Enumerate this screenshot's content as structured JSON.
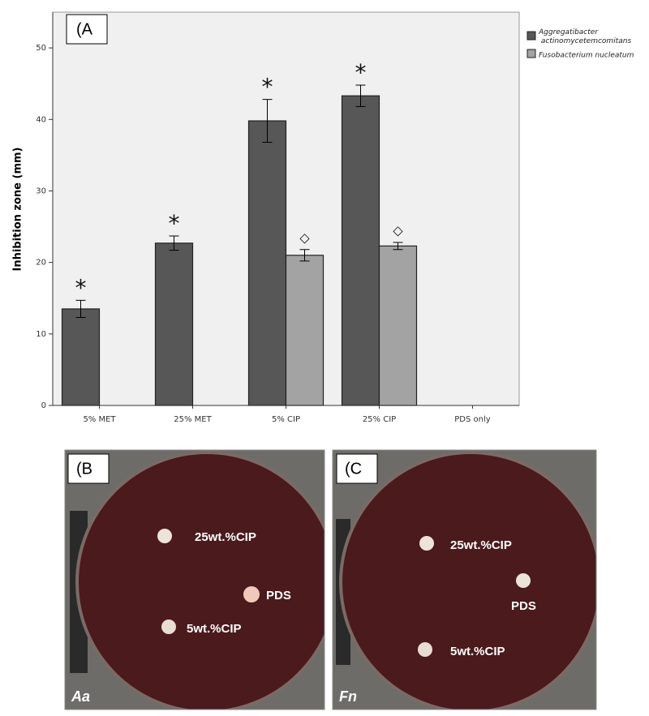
{
  "chart_data": {
    "type": "bar",
    "panel_label": "(A",
    "y_label": "Inhibition zone (mm)",
    "categories": [
      "5% MET",
      "25% MET",
      "5% CIP",
      "25% CIP",
      "PDS only"
    ],
    "series": [
      {
        "name": "Aggregatibacter actinomycetemcomitans",
        "color": "#575757",
        "values": [
          13.5,
          22.7,
          39.8,
          43.3,
          0
        ],
        "errors": [
          1.2,
          1.0,
          3.0,
          1.5,
          null
        ],
        "annotations": [
          "*",
          "*",
          "*",
          "*",
          null
        ]
      },
      {
        "name": "Fusobacterium nucleatum",
        "color": "#a3a3a3",
        "values": [
          0,
          0,
          21.0,
          22.3,
          0
        ],
        "errors": [
          null,
          null,
          0.8,
          0.5,
          null
        ],
        "annotations": [
          null,
          null,
          "◇",
          "◇",
          null
        ]
      }
    ],
    "ylim": [
      0,
      55
    ],
    "yticks": [
      0,
      10,
      20,
      30,
      40,
      50
    ],
    "grid": false
  },
  "photos": [
    {
      "panel_label": "(B",
      "species": "Aa",
      "disks": [
        "25wt.%CIP",
        "PDS",
        "5wt.%CIP"
      ]
    },
    {
      "panel_label": "(C",
      "species": "Fn",
      "disks": [
        "25wt.%CIP",
        "PDS",
        "5wt.%CIP"
      ]
    }
  ]
}
